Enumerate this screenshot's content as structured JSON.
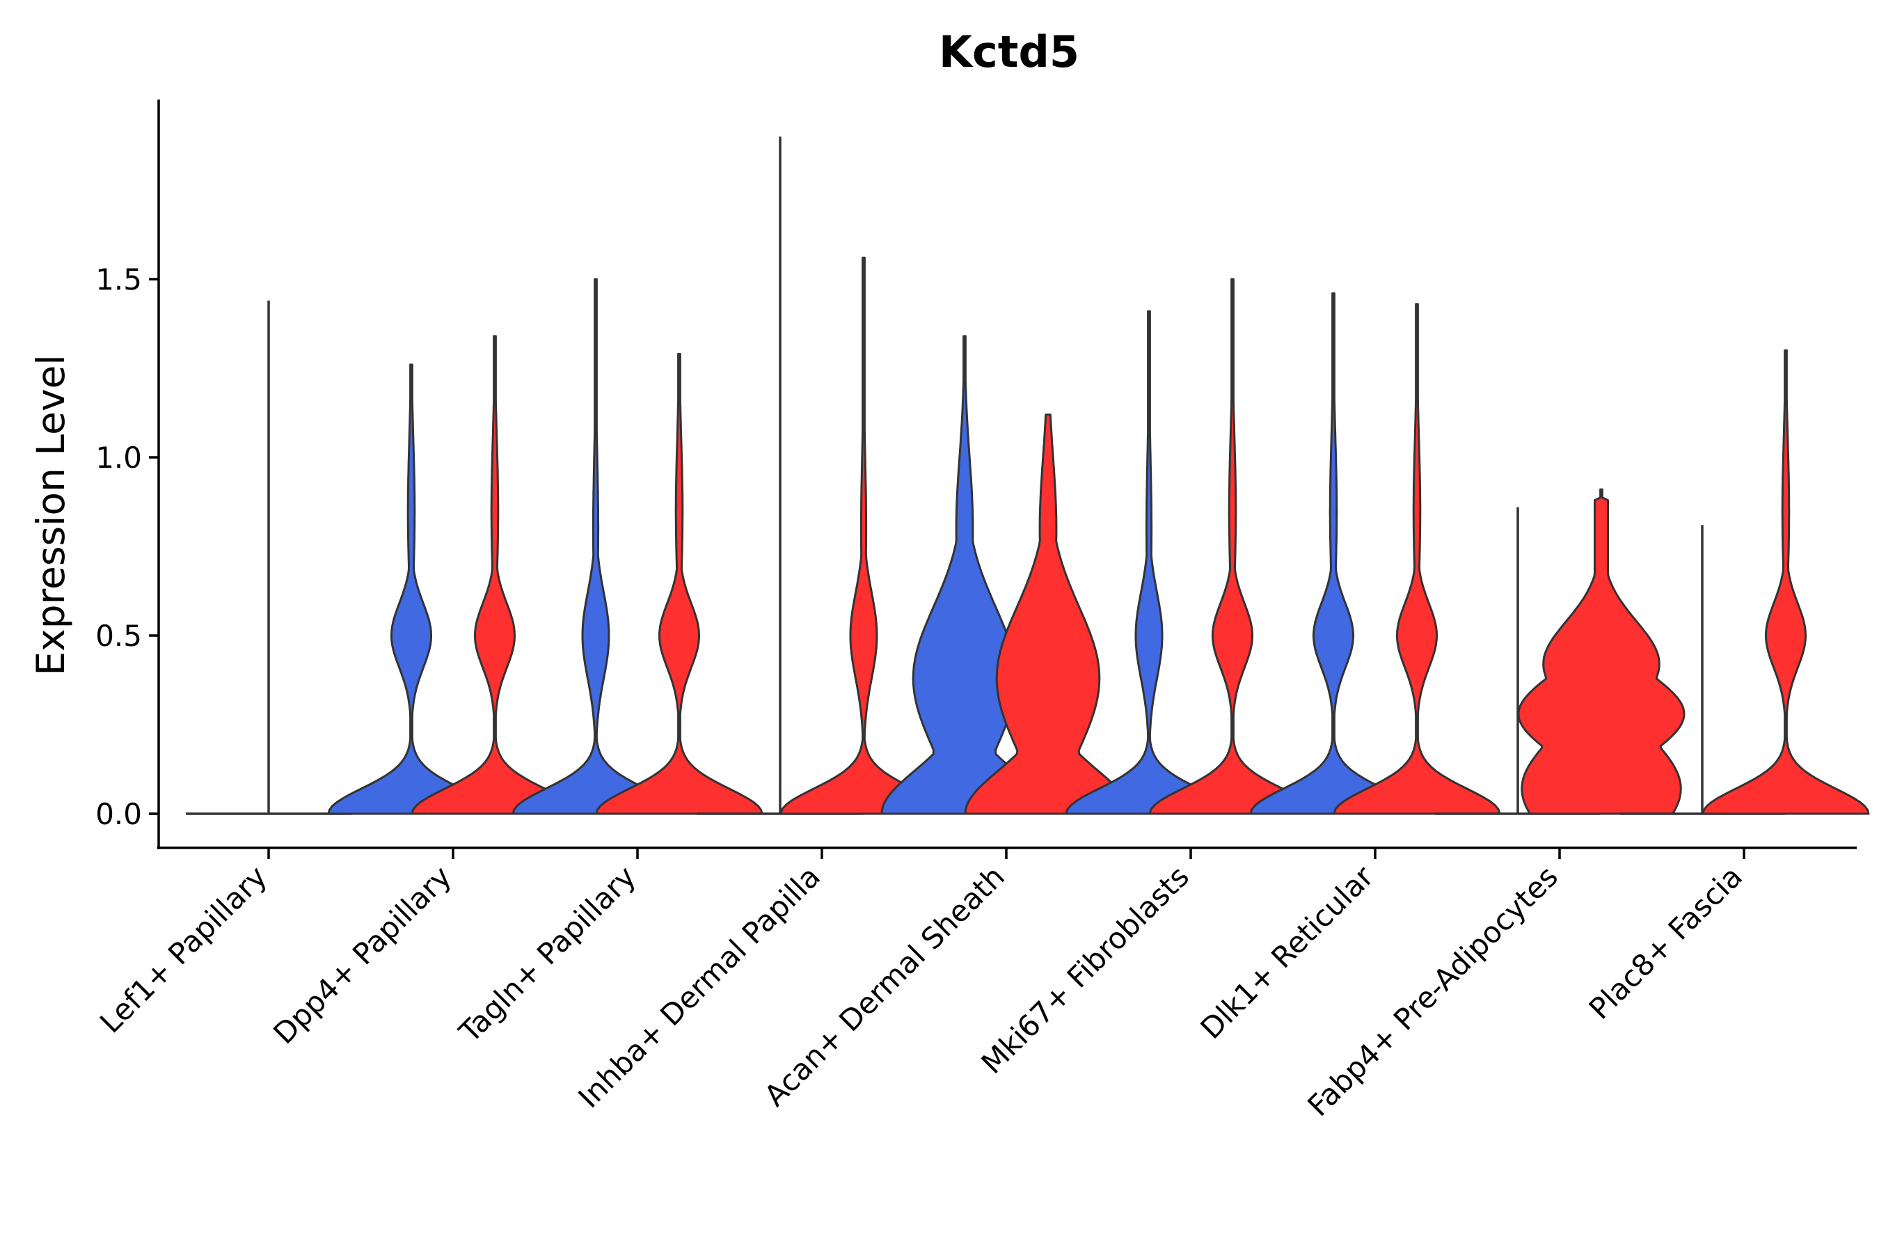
{
  "chart_data": {
    "type": "violin",
    "title": "Kctd5",
    "ylabel": "Expression Level",
    "xlabel": "",
    "ylim": [
      -0.1,
      2.0
    ],
    "yticks": [
      0.0,
      0.5,
      1.0,
      1.5
    ],
    "ytick_labels": [
      "0.0",
      "0.5",
      "1.0",
      "1.5"
    ],
    "categories": [
      "Lef1+ Papillary",
      "Dpp4+ Papillary",
      "Tagln+ Papillary",
      "Inhba+ Dermal Papilla",
      "Acan+ Dermal Sheath",
      "Mki67+ Fibroblasts",
      "Dlk1+ Reticular",
      "Fabp4+ Pre-Adipocytes",
      "Plac8+ Fascia"
    ],
    "colors": {
      "blue": "#4169E1",
      "red": "#FF3030",
      "outline": "#333333"
    },
    "series": [
      {
        "name": "blue",
        "color": "#4169E1",
        "max": [
          1.44,
          1.26,
          1.5,
          1.9,
          1.34,
          1.41,
          1.46,
          0.86,
          0.81
        ],
        "peak": [
          0.0,
          0.0,
          0.0,
          0.0,
          0.0,
          0.0,
          0.0,
          0.0,
          0.0
        ],
        "shape": [
          "flat",
          "bimodal",
          "unimodal",
          "flat",
          "wide",
          "unimodal",
          "bimodal",
          "flat",
          "flat"
        ]
      },
      {
        "name": "red",
        "color": "#FF3030",
        "max": [
          null,
          1.34,
          1.29,
          1.56,
          1.12,
          1.5,
          1.43,
          0.91,
          1.3
        ],
        "peak": [
          null,
          0.0,
          0.0,
          0.0,
          0.0,
          0.0,
          0.0,
          0.25,
          0.0
        ],
        "shape": [
          null,
          "bimodal",
          "bimodal",
          "unimodal",
          "wide",
          "bimodal",
          "bimodal",
          "fabp4",
          "bimodal"
        ]
      }
    ]
  }
}
